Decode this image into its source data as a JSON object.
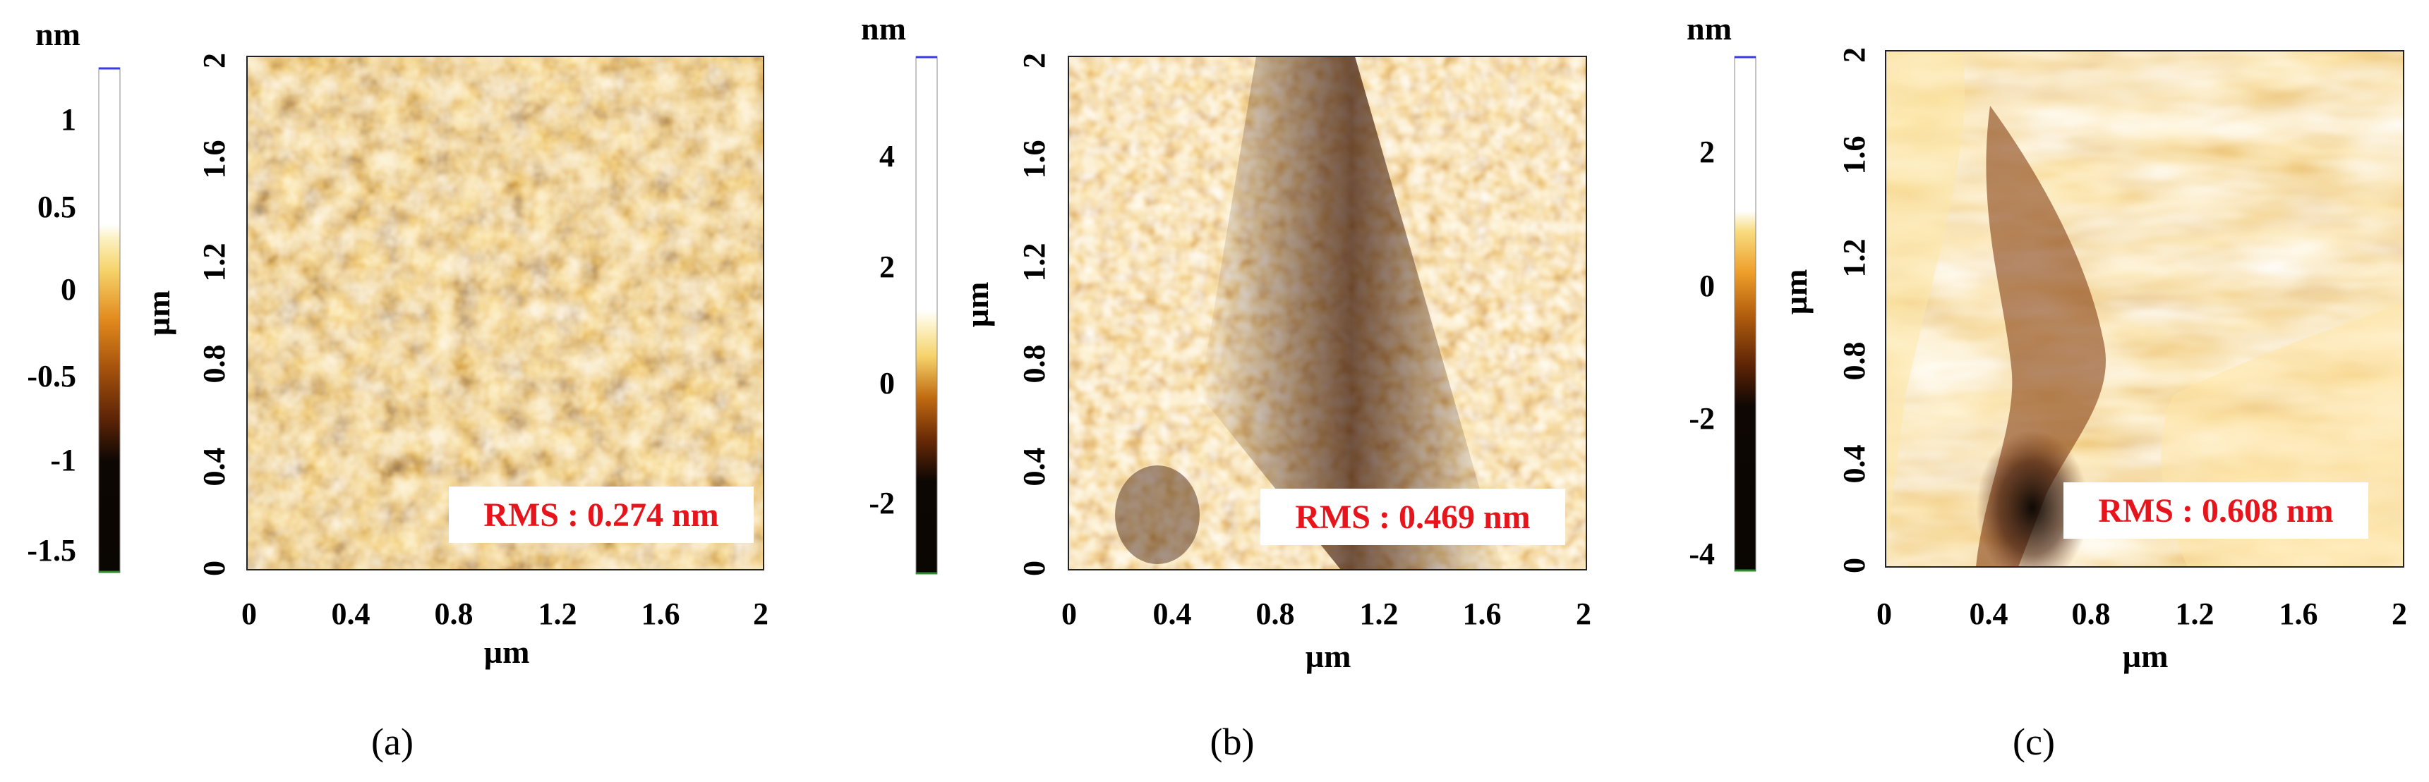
{
  "panels": [
    {
      "caption": "(a)",
      "height_unit": "nm",
      "length_unit": "µm",
      "colorbar_ticks": [
        "1",
        "0.5",
        "0",
        "-0.5",
        "-1",
        "-1.5"
      ],
      "x_ticks": [
        "0",
        "0.4",
        "0.8",
        "1.2",
        "1.6",
        "2"
      ],
      "y_ticks": [
        "0",
        "0.4",
        "0.8",
        "1.2",
        "1.6",
        "2"
      ],
      "rms_label": "RMS : 0.274 nm",
      "image_description": "fine porous texture with many dark pits"
    },
    {
      "caption": "(b)",
      "height_unit": "nm",
      "length_unit": "µm",
      "colorbar_ticks": [
        "4",
        "2",
        "0",
        "-2"
      ],
      "x_ticks": [
        "0",
        "0.4",
        "0.8",
        "1.2",
        "1.6",
        "2"
      ],
      "y_ticks": [
        "0",
        "0.4",
        "0.8",
        "1.2",
        "1.6",
        "2"
      ],
      "rms_label": "RMS : 0.469 nm",
      "image_description": "granular texture with a dark diagonal band"
    },
    {
      "caption": "(c)",
      "height_unit": "nm",
      "length_unit": "µm",
      "colorbar_ticks": [
        "2",
        "0",
        "-2",
        "-4"
      ],
      "x_ticks": [
        "0",
        "0.4",
        "0.8",
        "1.2",
        "1.6",
        "2"
      ],
      "y_ticks": [
        "0",
        "0.4",
        "0.8",
        "1.2",
        "1.6",
        "2"
      ],
      "rms_label": "RMS : 0.608 nm",
      "image_description": "terraced step structure with a dark valley at lower left"
    }
  ],
  "colormap": [
    "#0a0602",
    "#3a1404",
    "#7a3208",
    "#b55a0c",
    "#de8a22",
    "#f3c25a",
    "#fbe9a6",
    "#ffffff"
  ]
}
